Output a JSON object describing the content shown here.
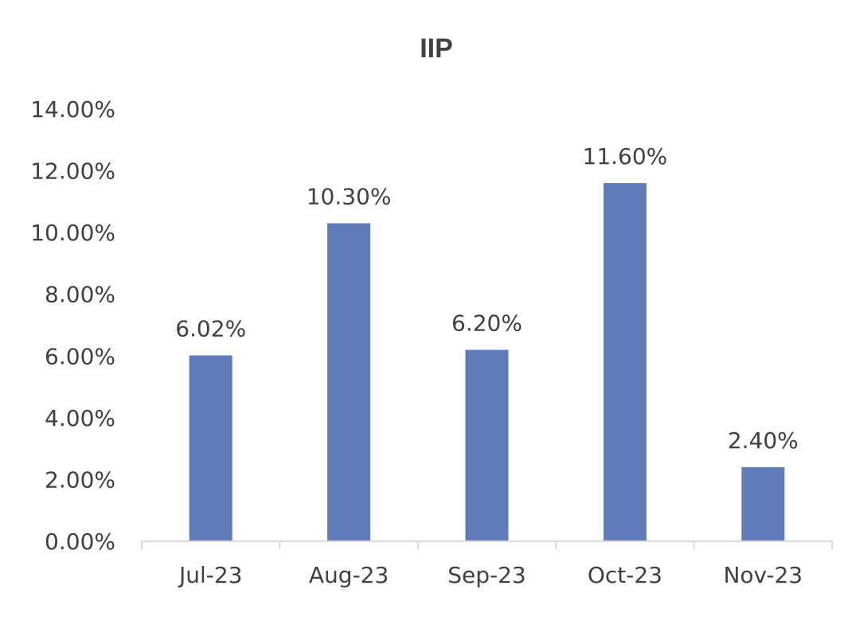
{
  "chart_data": {
    "type": "bar",
    "title": "IIP",
    "xlabel": "",
    "ylabel": "",
    "categories": [
      "Jul-23",
      "Aug-23",
      "Sep-23",
      "Oct-23",
      "Nov-23"
    ],
    "values": [
      6.02,
      10.3,
      6.2,
      11.6,
      2.4
    ],
    "value_labels": [
      "6.02%",
      "10.30%",
      "6.20%",
      "11.60%",
      "2.40%"
    ],
    "ylim": [
      0,
      14
    ],
    "yticks": [
      0,
      2,
      4,
      6,
      8,
      10,
      12,
      14
    ],
    "ytick_labels": [
      "0.00%",
      "2.00%",
      "4.00%",
      "6.00%",
      "8.00%",
      "10.00%",
      "12.00%",
      "14.00%"
    ],
    "grid": false,
    "legend": "none",
    "bar_color": "#5f7cb8",
    "axis_color": "#d9d9d9",
    "text_color": "#404040"
  }
}
